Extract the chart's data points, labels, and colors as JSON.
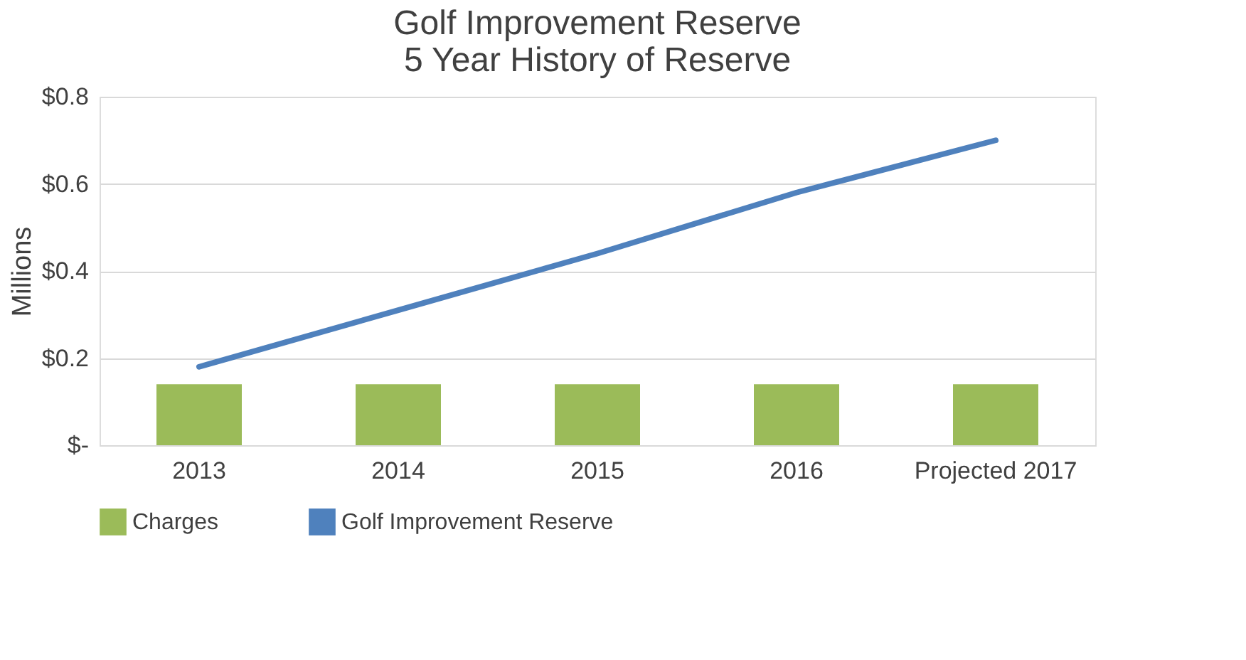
{
  "chart_data": {
    "type": "bar",
    "title": "Golf Improvement Reserve\n5 Year History of Reserve",
    "ylabel": "Millions",
    "categories": [
      "2013",
      "2014",
      "2015",
      "2016",
      "Projected 2017"
    ],
    "series": [
      {
        "name": "Charges",
        "color": "#9bbb59",
        "values": [
          0.14,
          0.14,
          0.14,
          0.14,
          0.14
        ]
      },
      {
        "name": "Golf Improvement Reserve",
        "type": "line",
        "color": "#4f81bd",
        "values": [
          0.18,
          0.31,
          0.44,
          0.58,
          0.7
        ]
      }
    ],
    "ylim": [
      0,
      0.8
    ],
    "yticks": [
      {
        "value": 0,
        "label": "$-"
      },
      {
        "value": 0.2,
        "label": "$0.2"
      },
      {
        "value": 0.4,
        "label": "$0.4"
      },
      {
        "value": 0.6,
        "label": "$0.6"
      },
      {
        "value": 0.8,
        "label": "$0.8"
      }
    ],
    "grid": "y",
    "legend": "bottom"
  }
}
